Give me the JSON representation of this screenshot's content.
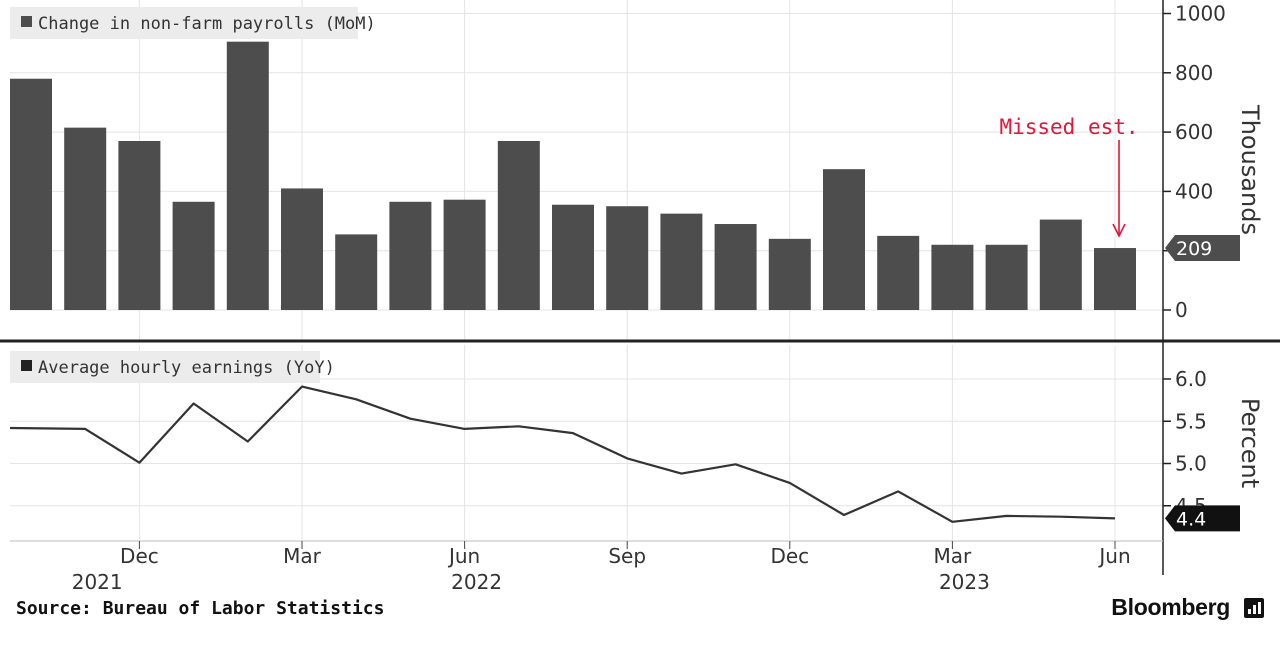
{
  "chart_data": [
    {
      "type": "bar",
      "legend": "Change in non-farm payrolls (MoM)",
      "ylabel": "Thousands",
      "ylim": [
        -100,
        1000
      ],
      "yticks": [
        0,
        200,
        400,
        600,
        800,
        1000
      ],
      "grid": true,
      "categories": [
        "2021-10",
        "2021-11",
        "2021-12",
        "2022-01",
        "2022-02",
        "2022-03",
        "2022-04",
        "2022-05",
        "2022-06",
        "2022-07",
        "2022-08",
        "2022-09",
        "2022-10",
        "2022-11",
        "2022-12",
        "2023-01",
        "2023-02",
        "2023-03",
        "2023-04",
        "2023-05",
        "2023-06"
      ],
      "values": [
        780,
        615,
        570,
        365,
        905,
        410,
        255,
        365,
        372,
        570,
        355,
        350,
        325,
        290,
        240,
        475,
        250,
        220,
        220,
        305,
        209
      ],
      "color": "#4d4d4d",
      "last_value_tag": "209",
      "annotation": {
        "text": "Missed est.",
        "color": "#e0163c",
        "target": "2023-06"
      }
    },
    {
      "type": "line",
      "legend": "Average hourly earnings (YoY)",
      "ylabel": "Percent",
      "ylim": [
        4.2,
        6.4
      ],
      "yticks": [
        "4.5",
        "5.0",
        "5.5",
        "6.0"
      ],
      "grid": true,
      "x": [
        "2021-10",
        "2021-11",
        "2021-12",
        "2022-01",
        "2022-02",
        "2022-03",
        "2022-04",
        "2022-05",
        "2022-06",
        "2022-07",
        "2022-08",
        "2022-09",
        "2022-10",
        "2022-11",
        "2022-12",
        "2023-01",
        "2023-02",
        "2023-03",
        "2023-04",
        "2023-05",
        "2023-06"
      ],
      "y": [
        5.42,
        5.41,
        5.01,
        5.71,
        5.26,
        5.91,
        5.76,
        5.53,
        5.41,
        5.44,
        5.36,
        5.06,
        4.88,
        4.99,
        4.77,
        4.39,
        4.67,
        4.31,
        4.38,
        4.37,
        4.35
      ],
      "color": "#333333",
      "last_value_tag": "4.4"
    }
  ],
  "x_axis": {
    "months": [
      {
        "label": "Dec",
        "x": "2021-12"
      },
      {
        "label": "Mar",
        "x": "2022-03"
      },
      {
        "label": "Jun",
        "x": "2022-06"
      },
      {
        "label": "Sep",
        "x": "2022-09"
      },
      {
        "label": "Dec",
        "x": "2022-12"
      },
      {
        "label": "Mar",
        "x": "2023-03"
      },
      {
        "label": "Jun",
        "x": "2023-06"
      }
    ],
    "years": [
      {
        "label": "2021",
        "x": "2021-11"
      },
      {
        "label": "2022",
        "x": "2022-06"
      },
      {
        "label": "2023",
        "x": "2023-03"
      }
    ]
  },
  "footer": {
    "source": "Source: Bureau of Labor Statistics",
    "brand": "Bloomberg"
  }
}
